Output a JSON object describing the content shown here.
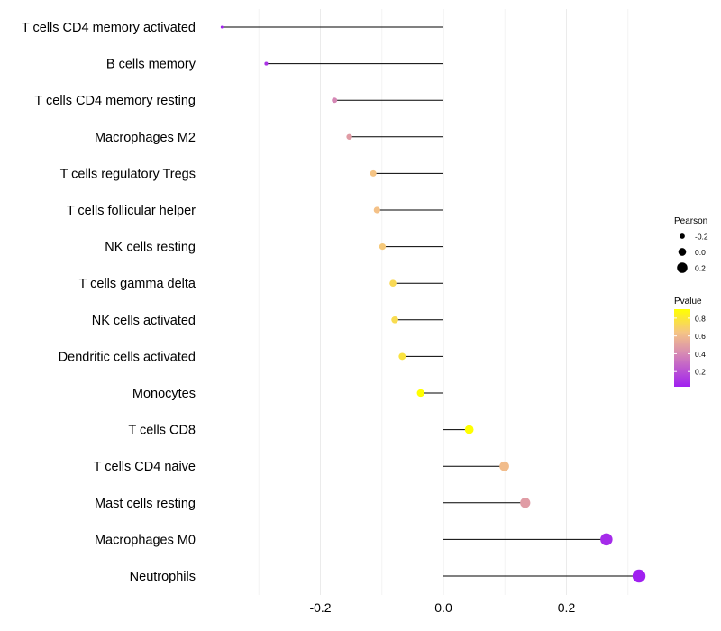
{
  "chart_data": {
    "type": "lollipop",
    "title": "",
    "xlabel": "",
    "ylabel": "",
    "xlim": [
      -0.36,
      0.325
    ],
    "x_ticks": [
      -0.2,
      0.0,
      0.2
    ],
    "x_tick_labels": [
      "-0.2",
      "0.0",
      "0.2"
    ],
    "baseline": 0,
    "grid": true,
    "categories": [
      "T cells CD4 memory activated",
      "B cells memory",
      "T cells CD4 memory resting",
      "Macrophages M2",
      "T cells regulatory  Tregs ",
      "T cells follicular helper",
      "NK cells resting",
      "T cells gamma delta",
      "NK cells activated",
      "Dendritic cells activated",
      "Monocytes",
      "T cells CD8",
      "T cells CD4 naive",
      "Mast cells resting",
      "Macrophages M0",
      "Neutrophils"
    ],
    "values": [
      -0.36,
      -0.288,
      -0.177,
      -0.153,
      -0.114,
      -0.108,
      -0.099,
      -0.082,
      -0.079,
      -0.067,
      -0.037,
      0.042,
      0.099,
      0.133,
      0.265,
      0.318
    ],
    "pvalues": [
      0.04,
      0.1,
      0.42,
      0.5,
      0.65,
      0.64,
      0.67,
      0.74,
      0.75,
      0.78,
      0.9,
      0.9,
      0.62,
      0.5,
      0.07,
      0.03
    ],
    "size_variable": "Pearson",
    "color_variable": "Pvalue",
    "legend": {
      "position": "right",
      "size": {
        "title": "Pearson",
        "entries": [
          {
            "label": "-0.2",
            "value": -0.2
          },
          {
            "label": "0.0",
            "value": 0.0
          },
          {
            "label": "0.2",
            "value": 0.2
          }
        ]
      },
      "color": {
        "title": "Pvalue",
        "range": [
          0.03,
          0.9
        ],
        "ticks": [
          0.8,
          0.6,
          0.4,
          0.2
        ],
        "tick_labels": [
          "0.8",
          "0.6",
          "0.4",
          "0.2"
        ],
        "gradient": [
          "#a020f0",
          "#e8a0a0",
          "#f5cc80",
          "#ffff00"
        ]
      }
    }
  }
}
